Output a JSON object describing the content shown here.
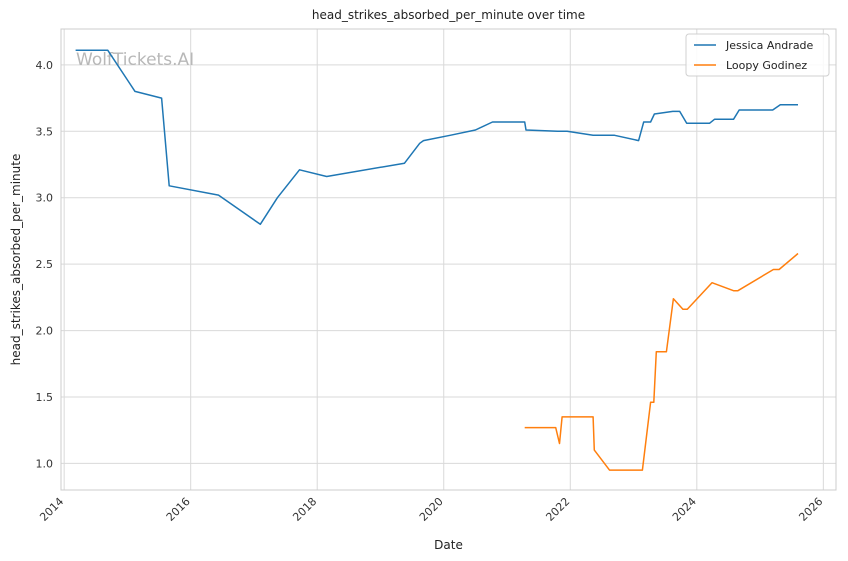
{
  "chart_data": {
    "type": "line",
    "title": "head_strikes_absorbed_per_minute over time",
    "xlabel": "Date",
    "ylabel": "head_strikes_absorbed_per_minute",
    "watermark": "WolfTickets.AI",
    "xlim": [
      2013.95,
      2026.2
    ],
    "ylim": [
      0.8,
      4.27
    ],
    "x_ticks": [
      2014,
      2016,
      2018,
      2020,
      2022,
      2024,
      2026
    ],
    "x_tick_labels": [
      "2014",
      "2016",
      "2018",
      "2020",
      "2022",
      "2024",
      "2026"
    ],
    "y_ticks": [
      1.0,
      1.5,
      2.0,
      2.5,
      3.0,
      3.5,
      4.0
    ],
    "y_tick_labels": [
      "1.0",
      "1.5",
      "2.0",
      "2.5",
      "3.0",
      "3.5",
      "4.0"
    ],
    "grid": true,
    "legend_position": "top-right",
    "series": [
      {
        "name": "Jessica Andrade",
        "color": "#1f77b4",
        "x": [
          2014.18,
          2014.69,
          2015.12,
          2015.54,
          2015.66,
          2016.44,
          2017.1,
          2017.37,
          2017.72,
          2018.15,
          2019.38,
          2019.62,
          2019.68,
          2020.1,
          2020.5,
          2020.77,
          2021.03,
          2021.28,
          2021.3,
          2021.8,
          2021.95,
          2022.36,
          2022.7,
          2023.08,
          2023.16,
          2023.27,
          2023.33,
          2023.62,
          2023.73,
          2023.84,
          2024.2,
          2024.28,
          2024.58,
          2024.67,
          2025.2,
          2025.32,
          2025.6
        ],
        "y": [
          4.11,
          4.11,
          3.8,
          3.75,
          3.09,
          3.02,
          2.8,
          3.0,
          3.21,
          3.16,
          3.26,
          3.41,
          3.43,
          3.47,
          3.51,
          3.57,
          3.57,
          3.57,
          3.51,
          3.5,
          3.5,
          3.47,
          3.47,
          3.43,
          3.57,
          3.57,
          3.63,
          3.65,
          3.65,
          3.56,
          3.56,
          3.59,
          3.59,
          3.66,
          3.66,
          3.7,
          3.7
        ]
      },
      {
        "name": "Loopy Godinez",
        "color": "#ff7f0e",
        "x": [
          2021.28,
          2021.77,
          2021.83,
          2021.87,
          2022.36,
          2022.38,
          2022.62,
          2023.14,
          2023.27,
          2023.32,
          2023.36,
          2023.52,
          2023.63,
          2023.78,
          2023.85,
          2024.24,
          2024.58,
          2024.65,
          2025.21,
          2025.3,
          2025.6
        ],
        "y": [
          1.27,
          1.27,
          1.15,
          1.35,
          1.35,
          1.1,
          0.95,
          0.95,
          1.46,
          1.46,
          1.84,
          1.84,
          2.24,
          2.16,
          2.16,
          2.36,
          2.3,
          2.3,
          2.46,
          2.46,
          2.58
        ]
      }
    ]
  }
}
